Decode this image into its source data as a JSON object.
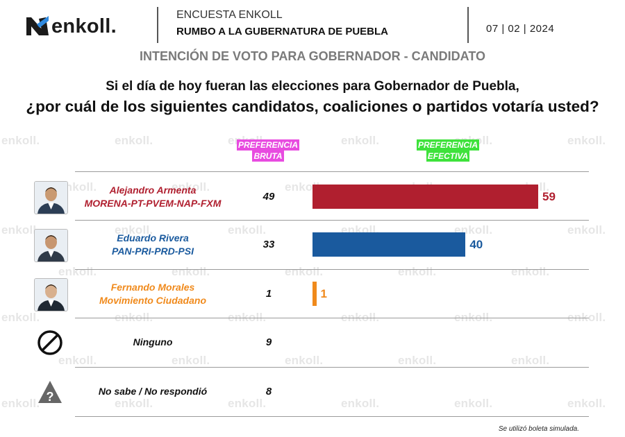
{
  "header": {
    "brand": "enkoll.",
    "survey_name": "ENCUESTA ENKOLL",
    "survey_subtitle": "RUMBO A LA GUBERNATURA DE PUEBLA",
    "date": "07 | 02 | 2024"
  },
  "section_title": "INTENCIÓN DE VOTO PARA GOBERNADOR - CANDIDATO",
  "question": {
    "line1": "Si el día de hoy fueran las elecciones para Gobernador de Puebla,",
    "line2": "¿por cuál de los siguientes candidatos, coaliciones o partidos votaría usted?"
  },
  "watermark_text": "enkoll.",
  "footnote": "Se utilizó boleta simulada.",
  "chart_data": {
    "type": "bar",
    "columns": {
      "bruta": [
        "PREFERENCIA",
        "BRUTA"
      ],
      "efectiva": [
        "PREFERENCIA",
        "EFECTIVA"
      ]
    },
    "rows": [
      {
        "name": "Alejandro Armenta",
        "party": "MORENA-PT-PVEM-NAP-FXM",
        "bruta": "49",
        "efectiva": 59,
        "color": "#b01f2f",
        "icon": "candidate-photo"
      },
      {
        "name": "Eduardo Rivera",
        "party": "PAN-PRI-PRD-PSI",
        "bruta": "33",
        "efectiva": 40,
        "color": "#1a5a9e",
        "icon": "candidate-photo"
      },
      {
        "name": "Fernando Morales",
        "party": "Movimiento Ciudadano",
        "bruta": "1",
        "efectiva": 1,
        "color": "#f08a1c",
        "icon": "candidate-photo"
      },
      {
        "name": "Ninguno",
        "party": "",
        "bruta": "9",
        "efectiva": null,
        "color": "#111111",
        "icon": "prohibited-icon"
      },
      {
        "name": "No sabe / No respondió",
        "party": "",
        "bruta": "8",
        "efectiva": null,
        "color": "#111111",
        "icon": "question-triangle-icon"
      }
    ],
    "xlim": [
      0,
      100
    ],
    "grid": false,
    "legend": "none"
  }
}
